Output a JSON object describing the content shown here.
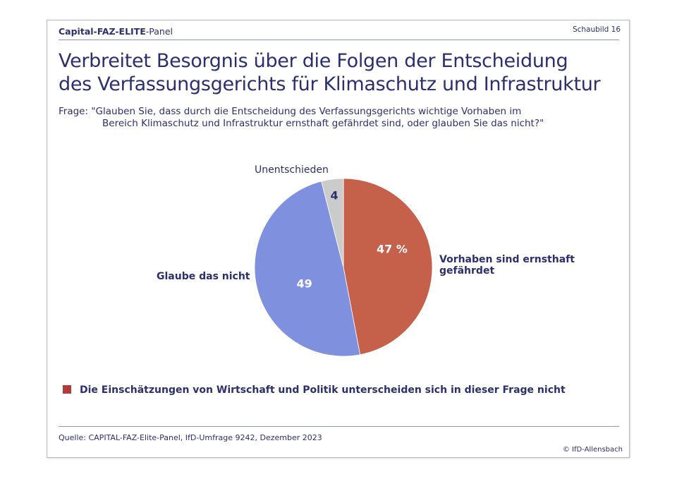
{
  "header": {
    "panel_prefix": "Capital-",
    "panel_bold": "FAZ-ELITE",
    "panel_suffix": "-Panel",
    "chart_number": "Schaubild 16"
  },
  "title_line1": "Verbreitet Besorgnis über die Folgen der Entscheidung",
  "title_line2": "des Verfassungsgerichts für Klimaschutz und Infrastruktur",
  "question_line1": "Frage: \"Glauben Sie, dass durch die Entscheidung des Verfassungsgerichts wichtige Vorhaben im",
  "question_line2": "Bereich Klimaschutz und Infrastruktur ernsthaft gefährdet sind, oder glauben Sie das nicht?\"",
  "note": "Die Einschätzungen von Wirtschaft und Politik unterscheiden sich in dieser Frage nicht",
  "note_color": "#b33a3a",
  "source": "Quelle: CAPITAL-FAZ-Elite-Panel, IfD-Umfrage 9242, Dezember 2023",
  "copyright": "© IfD-Allensbach",
  "chart_data": {
    "type": "pie",
    "title": "Verbreitet Besorgnis über die Folgen der Entscheidung des Verfassungsgerichts für Klimaschutz und Infrastruktur",
    "unit": "%",
    "start": "12 o'clock, clockwise",
    "slices": [
      {
        "name": "Vorhaben sind ernsthaft gefährdet",
        "label_line1": "Vorhaben sind ernsthaft",
        "label_line2": "gefährdet",
        "value": 47,
        "value_label": "47 %",
        "color": "#c5604a",
        "value_text_color": "#ffffff"
      },
      {
        "name": "Glaube das nicht",
        "label_line1": "Glaube das nicht",
        "value": 49,
        "value_label": "49",
        "color": "#7f90df",
        "value_text_color": "#ffffff"
      },
      {
        "name": "Unentschieden",
        "label_line1": "Unentschieden",
        "value": 4,
        "value_label": "4",
        "color": "#cbcbcb",
        "value_text_color": "#2b2f6e"
      }
    ]
  }
}
